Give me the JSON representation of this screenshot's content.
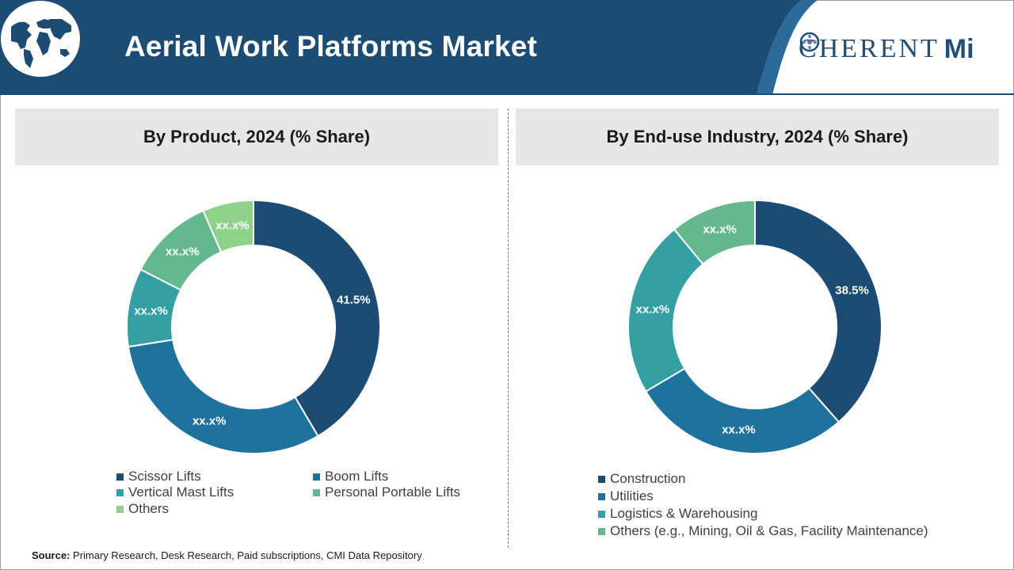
{
  "header": {
    "title": "Aerial Work Platforms Market",
    "logo": {
      "left": "C",
      "right": "HERENT",
      "mark": "Mi"
    },
    "colors": {
      "banner": "#1c4b74",
      "stripe": "#2b6a9b"
    }
  },
  "source": {
    "label": "Source:",
    "text": "Primary Research, Desk Research, Paid subscriptions, CMI Data Repository"
  },
  "chart_data": [
    {
      "type": "donut",
      "title": "By Product, 2024 (% Share)",
      "categories": [
        "Scissor Lifts",
        "Boom Lifts",
        "Vertical Mast Lifts",
        "Personal Portable Lifts",
        "Others"
      ],
      "values": [
        41.5,
        31.0,
        10.0,
        11.0,
        6.5
      ],
      "labels": [
        "41.5%",
        "xx.x%",
        "xx.x%",
        "xx.x%",
        "xx.x%"
      ],
      "colors": [
        "#1c4b74",
        "#20729e",
        "#34a0a4",
        "#63b98d",
        "#8ed28a"
      ],
      "legend_position": "bottom"
    },
    {
      "type": "donut",
      "title": "By End-use Industry, 2024 (% Share)",
      "categories": [
        "Construction",
        "Utilities",
        "Logistics & Warehousing",
        "Others (e.g., Mining, Oil & Gas, Facility Maintenance)"
      ],
      "values": [
        38.5,
        28.0,
        22.5,
        11.0
      ],
      "labels": [
        "38.5%",
        "xx.x%",
        "xx.x%",
        "xx.x%"
      ],
      "colors": [
        "#1c4b74",
        "#20729e",
        "#34a0a4",
        "#63b98d"
      ],
      "legend_position": "bottom"
    }
  ]
}
